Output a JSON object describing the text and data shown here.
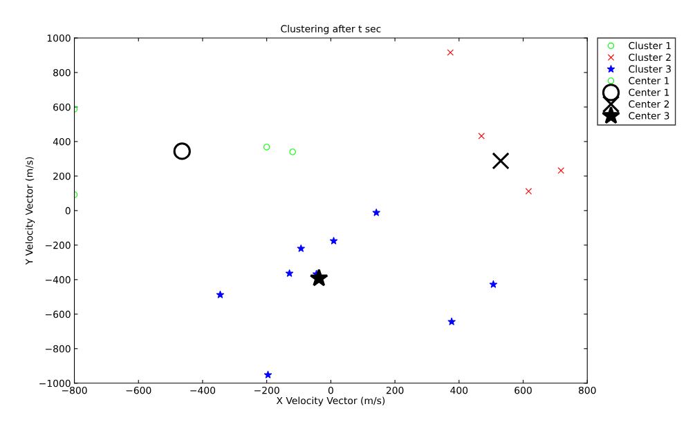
{
  "chart_data": {
    "type": "scatter",
    "title": "Clustering after t sec",
    "xlabel": "X Velocity Vector (m/s)",
    "ylabel": "Y Velocity Vector (m/s)",
    "xlim": [
      -800,
      800
    ],
    "ylim": [
      -1000,
      1000
    ],
    "xticks": [
      {
        "value": -800,
        "label": "−800"
      },
      {
        "value": -600,
        "label": "−600"
      },
      {
        "value": -400,
        "label": "−400"
      },
      {
        "value": -200,
        "label": "−200"
      },
      0,
      200,
      400,
      600,
      800
    ],
    "yticks": [
      {
        "value": -1000,
        "label": "−1000"
      },
      {
        "value": -800,
        "label": "−800"
      },
      {
        "value": -600,
        "label": "−600"
      },
      {
        "value": -400,
        "label": "−400"
      },
      {
        "value": -200,
        "label": "−200"
      },
      0,
      200,
      400,
      600,
      800,
      1000
    ],
    "grid": false,
    "legend": "top right",
    "series": [
      {
        "name": "Cluster 1",
        "color": "#00ff00",
        "marker": "circle",
        "x": [
          -800,
          -800,
          -200,
          -119
        ],
        "values": [
          588,
          92,
          368,
          340
        ]
      },
      {
        "name": "Cluster 2",
        "color": "#ff0000",
        "marker": "cross",
        "x": [
          373,
          470,
          617,
          718
        ],
        "values": [
          916,
          432,
          112,
          232
        ]
      },
      {
        "name": "Cluster 3",
        "color": "#0000ff",
        "marker": "star",
        "x": [
          142,
          9,
          -93,
          -129,
          -45,
          -345,
          -196,
          377,
          507
        ],
        "values": [
          -12,
          -176,
          -220,
          -364,
          -368,
          -488,
          -952,
          -644,
          -428
        ]
      },
      {
        "name": "Center 1",
        "color": "#00ff00",
        "marker": "circle"
      },
      {
        "name": "Center 1",
        "color": "#000000",
        "marker": "circle",
        "x": [
          -464
        ],
        "values": [
          344
        ]
      },
      {
        "name": "Center 2",
        "color": "#000000",
        "marker": "cross",
        "x": [
          530
        ],
        "values": [
          288
        ]
      },
      {
        "name": "Center 3",
        "color": "#000000",
        "marker": "star",
        "x": [
          -37
        ],
        "values": [
          -392
        ]
      }
    ]
  }
}
